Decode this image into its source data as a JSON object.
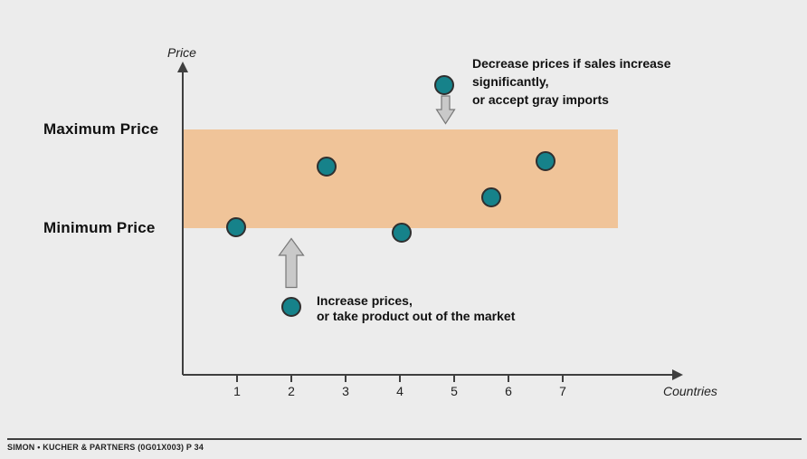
{
  "chart_data": {
    "type": "scatter",
    "title": "",
    "xlabel": "Countries",
    "ylabel": "Price",
    "x_ticks": [
      "1",
      "2",
      "3",
      "4",
      "5",
      "6",
      "7"
    ],
    "xlim": [
      0,
      9
    ],
    "grid": false,
    "band": {
      "max_label": "Maximum Price",
      "min_label": "Minimum Price",
      "y_range_band_fraction": [
        0,
        1
      ]
    },
    "points": [
      {
        "country": 1,
        "x": 0.98,
        "y_band_fraction": 0.01,
        "zone": "at minimum price"
      },
      {
        "country": 2,
        "x": 2.0,
        "y_band_fraction": -0.8,
        "zone": "below minimum price"
      },
      {
        "country": 3,
        "x": 2.65,
        "y_band_fraction": 0.62,
        "zone": "inside corridor"
      },
      {
        "country": 4,
        "x": 4.03,
        "y_band_fraction": -0.05,
        "zone": "at minimum price"
      },
      {
        "country": 5,
        "x": 4.82,
        "y_band_fraction": 1.45,
        "zone": "above maximum price"
      },
      {
        "country": 6,
        "x": 5.68,
        "y_band_fraction": 0.31,
        "zone": "inside corridor"
      },
      {
        "country": 7,
        "x": 6.68,
        "y_band_fraction": 0.68,
        "zone": "inside corridor"
      }
    ]
  },
  "annotations": {
    "decrease": {
      "lines": [
        "Decrease prices if sales increase",
        "significantly,",
        "or accept gray imports"
      ]
    },
    "increase": {
      "lines": [
        "Increase prices,",
        "or take product out of the market"
      ]
    }
  },
  "footer": {
    "text": "SIMON • KUCHER & PARTNERS (0G01X003) P 34"
  },
  "colors": {
    "background": "#ECECEC",
    "band": "#F0C499",
    "point_fill": "#16828A",
    "point_border": "#2F2F2F",
    "arrow_fill": "#C9C9C9",
    "arrow_border": "#787878",
    "axis": "#3F3F3F",
    "text": "#111111"
  }
}
